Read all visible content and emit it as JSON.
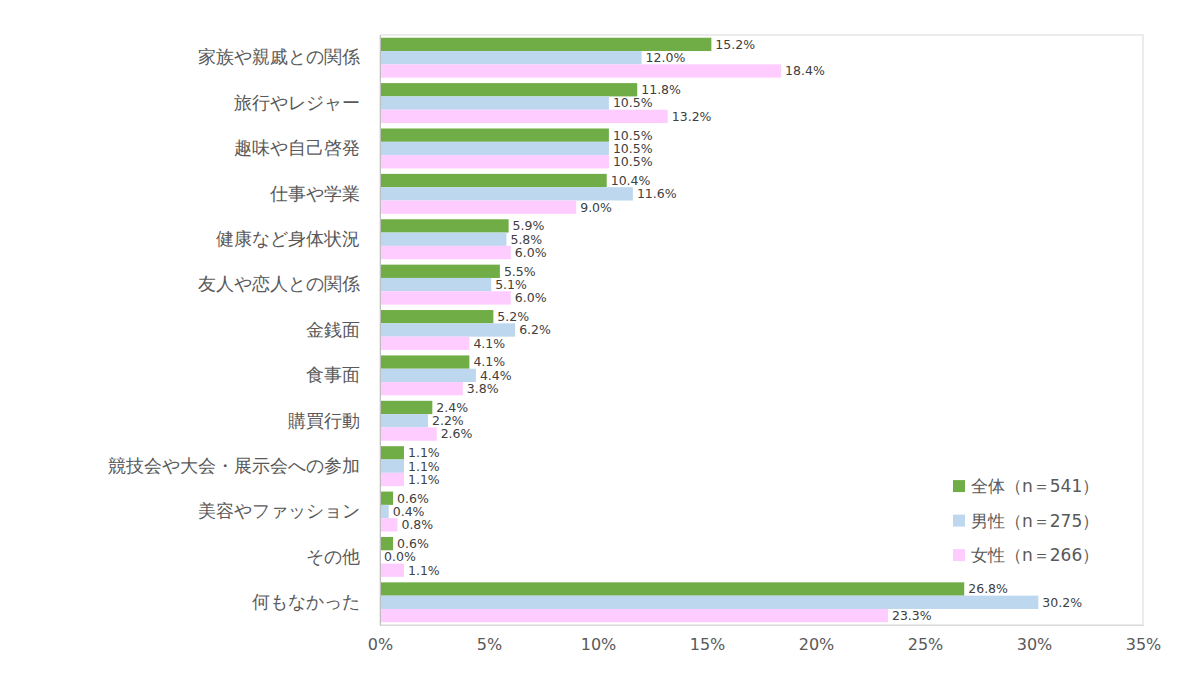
{
  "chart_data": {
    "type": "bar",
    "orientation": "horizontal",
    "categories": [
      "家族や親戚との関係",
      "旅行やレジャー",
      "趣味や自己啓発",
      "仕事や学業",
      "健康など身体状況",
      "友人や恋人との関係",
      "金銭面",
      "食事面",
      "購買行動",
      "競技会や大会・展示会への参加",
      "美容やファッション",
      "その他",
      "何もなかった"
    ],
    "series": [
      {
        "name": "全体（n＝541）",
        "color": "#70ad47",
        "values": [
          15.2,
          11.8,
          10.5,
          10.4,
          5.9,
          5.5,
          5.2,
          4.1,
          2.4,
          1.1,
          0.6,
          0.6,
          26.8
        ],
        "value_labels": [
          "15.2%",
          "11.8%",
          "10.5%",
          "10.4%",
          "5.9%",
          "5.5%",
          "5.2%",
          "4.1%",
          "2.4%",
          "1.1%",
          "0.6%",
          "0.6%",
          "26.8%"
        ]
      },
      {
        "name": "男性（n＝275）",
        "color": "#bdd7ee",
        "values": [
          12.0,
          10.5,
          10.5,
          11.6,
          5.8,
          5.1,
          6.2,
          4.4,
          2.2,
          1.1,
          0.4,
          0.0,
          30.2
        ],
        "value_labels": [
          "12.0%",
          "10.5%",
          "10.5%",
          "11.6%",
          "5.8%",
          "5.1%",
          "6.2%",
          "4.4%",
          "2.2%",
          "1.1%",
          "0.4%",
          "0.0%",
          "30.2%"
        ]
      },
      {
        "name": "女性（n＝266）",
        "color": "#ffccff",
        "values": [
          18.4,
          13.2,
          10.5,
          9.0,
          6.0,
          6.0,
          4.1,
          3.8,
          2.6,
          1.1,
          0.8,
          1.1,
          23.3
        ],
        "value_labels": [
          "18.4%",
          "13.2%",
          "10.5%",
          "9.0%",
          "6.0%",
          "6.0%",
          "4.1%",
          "3.8%",
          "2.6%",
          "1.1%",
          "0.8%",
          "1.1%",
          "23.3%"
        ]
      }
    ],
    "xlim": [
      0,
      35
    ],
    "xticks": [
      {
        "value": 0,
        "label": "0%"
      },
      {
        "value": 5,
        "label": "5%"
      },
      {
        "value": 10,
        "label": "10%"
      },
      {
        "value": 15,
        "label": "15%"
      },
      {
        "value": 20,
        "label": "20%"
      },
      {
        "value": 25,
        "label": "25%"
      },
      {
        "value": 30,
        "label": "30%"
      },
      {
        "value": 35,
        "label": "35%"
      }
    ],
    "grid": false,
    "legend": "lower right",
    "data_labels": true
  }
}
